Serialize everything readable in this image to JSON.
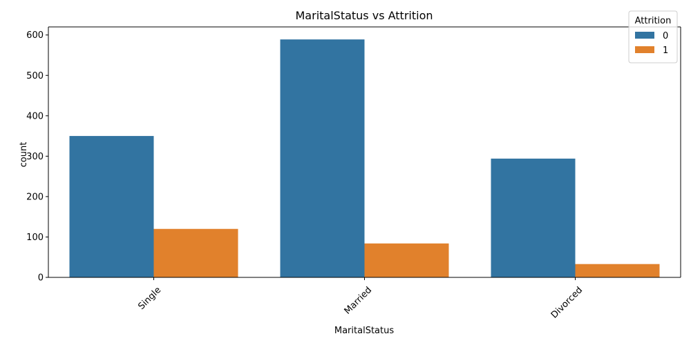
{
  "chart_data": {
    "type": "bar",
    "title": "MaritalStatus vs Attrition",
    "xlabel": "MaritalStatus",
    "ylabel": "count",
    "categories": [
      "Single",
      "Married",
      "Divorced"
    ],
    "series": [
      {
        "name": "0",
        "color": "#3274a1",
        "values": [
          350,
          589,
          294
        ]
      },
      {
        "name": "1",
        "color": "#e1812c",
        "values": [
          120,
          84,
          33
        ]
      }
    ],
    "ylim": [
      0,
      620
    ],
    "yticks": [
      0,
      100,
      200,
      300,
      400,
      500,
      600
    ],
    "legend": {
      "title": "Attrition",
      "placement": "top-right"
    },
    "grid": false,
    "xtick_rotation": 45
  }
}
